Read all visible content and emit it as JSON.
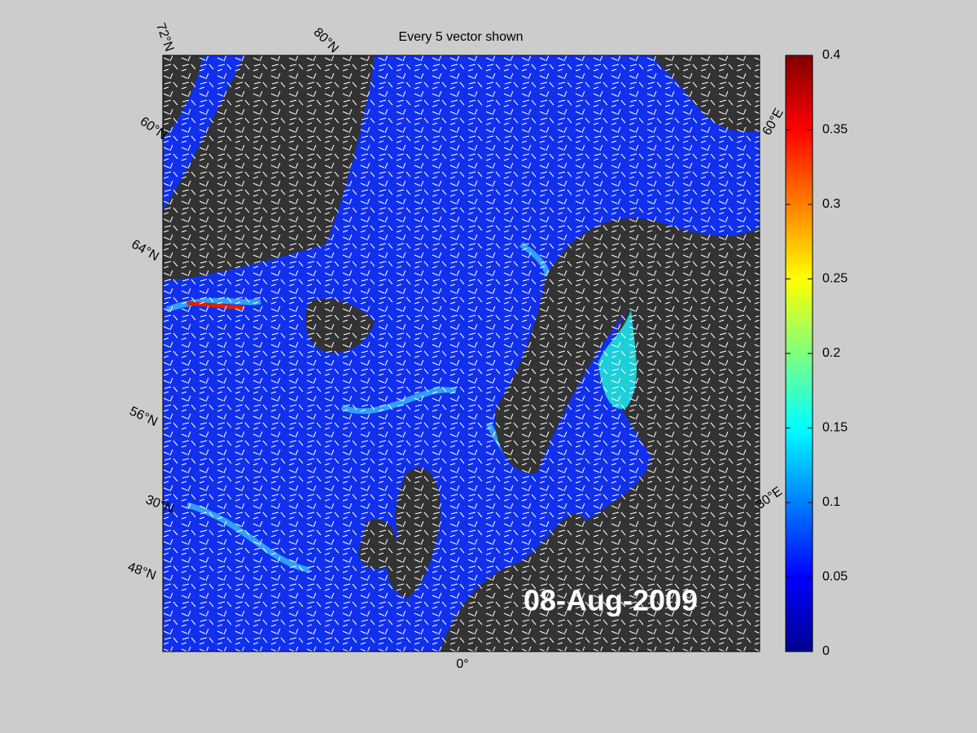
{
  "title": "Every 5 vector shown",
  "date_label": "08-Aug-2009",
  "graticule_labels": [
    "72°N",
    "80°N",
    "60°N",
    "64°N",
    "56°N",
    "30°N",
    "48°N",
    "60°E",
    "30°E",
    "0°"
  ],
  "colorbar": {
    "lim": [
      0,
      0.4
    ],
    "ticks": [
      0,
      0.05,
      0.1,
      0.15,
      0.2,
      0.25,
      0.3,
      0.35,
      0.4
    ]
  }
}
